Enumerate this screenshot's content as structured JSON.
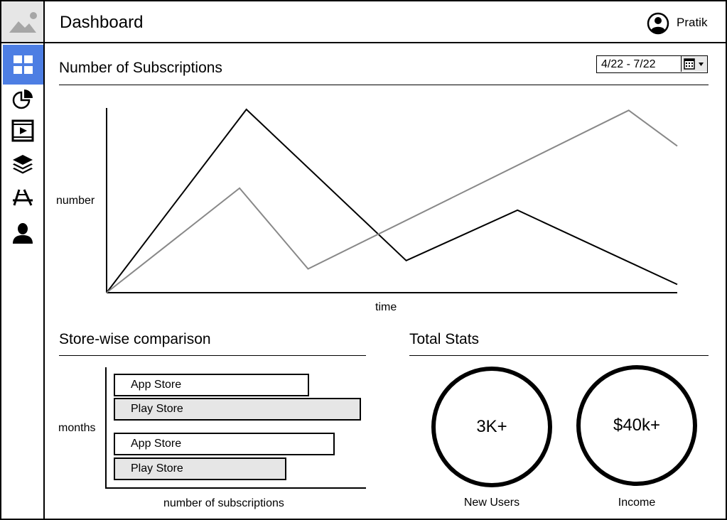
{
  "header": {
    "title": "Dashboard",
    "user_name": "Pratik"
  },
  "sidebar": {
    "items": [
      {
        "icon": "dashboard-grid-icon",
        "active": true
      },
      {
        "icon": "pie-chart-icon"
      },
      {
        "icon": "video-icon"
      },
      {
        "icon": "layers-icon"
      },
      {
        "icon": "app-store-icon"
      },
      {
        "icon": "user-icon"
      }
    ],
    "accent_color": "#4d7ee3"
  },
  "subscriptions": {
    "title": "Number of Subscriptions",
    "date_range": "4/22 - 7/22",
    "chart_data": {
      "type": "line",
      "xlabel": "time",
      "ylabel": "number",
      "series": [
        {
          "color": "#000000",
          "points": [
            [
              0,
              0
            ],
            [
              0.245,
              1.0
            ],
            [
              0.525,
              0.175
            ],
            [
              0.72,
              0.45
            ],
            [
              1.0,
              0.045
            ]
          ]
        },
        {
          "color": "#888888",
          "points": [
            [
              0,
              0
            ],
            [
              0.233,
              0.57
            ],
            [
              0.353,
              0.13
            ],
            [
              0.915,
              0.995
            ],
            [
              1.0,
              0.8
            ]
          ]
        }
      ]
    }
  },
  "store_comparison": {
    "title": "Store-wise comparison",
    "chart_data": {
      "type": "bar",
      "orientation": "horizontal",
      "xlabel": "number of subscriptions",
      "ylabel": "months",
      "bars": [
        {
          "label": "App Store",
          "value": 0.76,
          "fill": "#ffffff"
        },
        {
          "label": "Play Store",
          "value": 0.96,
          "fill": "#e6e6e6"
        },
        {
          "label": "App Store",
          "value": 0.86,
          "fill": "#ffffff"
        },
        {
          "label": "Play Store",
          "value": 0.67,
          "fill": "#e6e6e6"
        }
      ]
    }
  },
  "total_stats": {
    "title": "Total Stats",
    "stats": [
      {
        "value": "3K+",
        "label": "New Users"
      },
      {
        "value": "$40k+",
        "label": "Income"
      }
    ]
  }
}
